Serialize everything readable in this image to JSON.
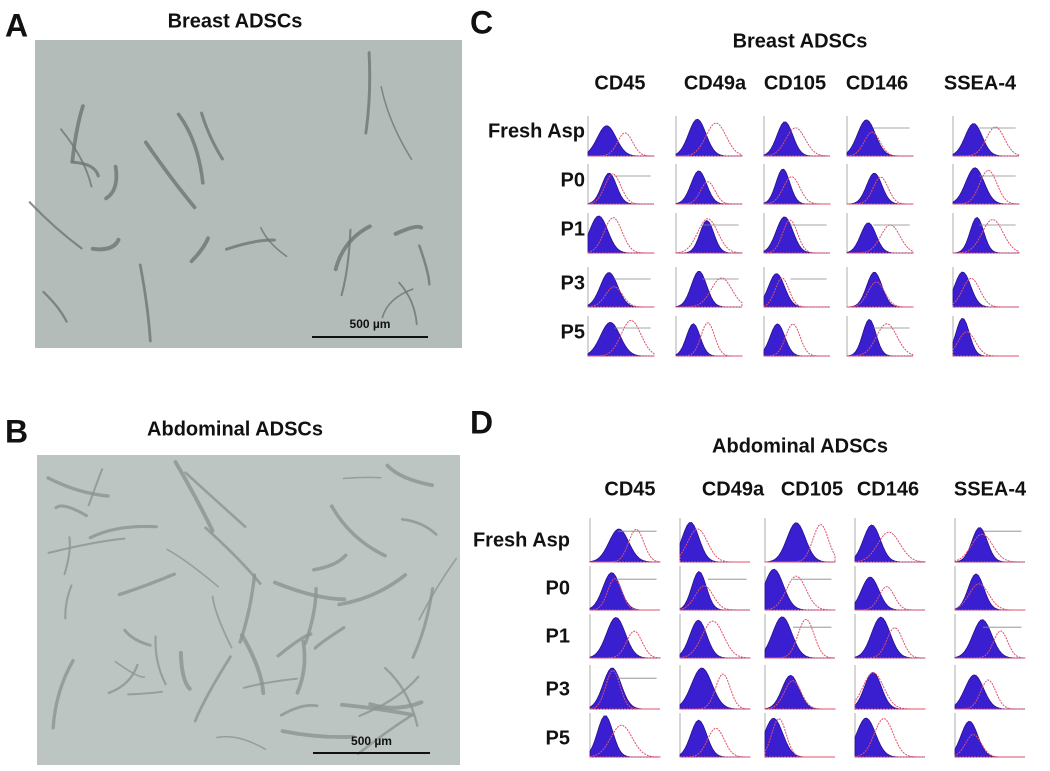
{
  "panels": [
    {
      "label": "A",
      "title": "Breast ADSCs",
      "scale_bar": "500 µm"
    },
    {
      "label": "B",
      "title": "Abdominal ADSCs",
      "scale_bar": "500 µm"
    },
    {
      "label": "C",
      "title": "Breast ADSCs",
      "columns": [
        "CD45",
        "CD49a",
        "CD105",
        "CD146",
        "SSEA-4"
      ],
      "rows": [
        "Fresh Asp",
        "P0",
        "P1",
        "P3",
        "P5"
      ]
    },
    {
      "label": "D",
      "title": "Abdominal ADSCs",
      "columns": [
        "CD45",
        "CD49a",
        "CD105",
        "CD146",
        "SSEA-4"
      ],
      "rows": [
        "Fresh Asp",
        "P0",
        "P1",
        "P3",
        "P5"
      ]
    }
  ]
}
